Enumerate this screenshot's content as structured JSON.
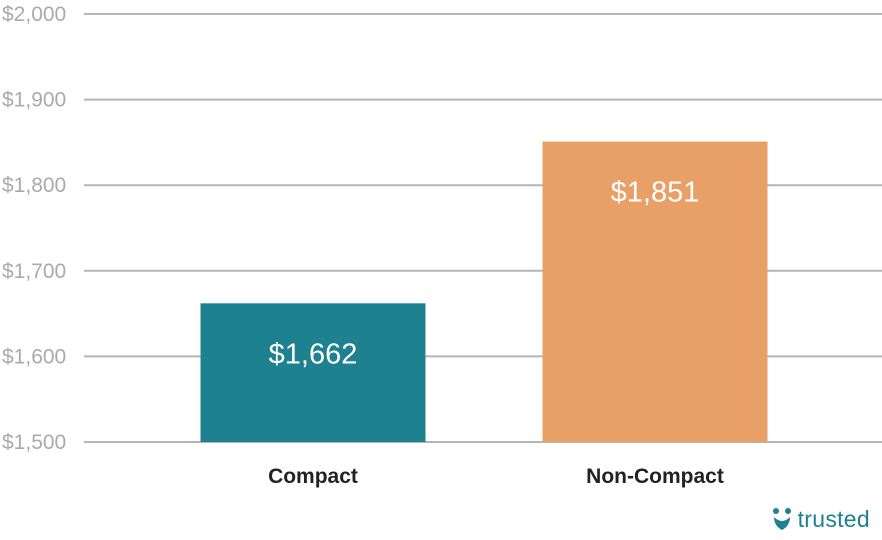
{
  "chart_data": {
    "type": "bar",
    "categories": [
      "Compact",
      "Non-Compact"
    ],
    "values": [
      1662,
      1851
    ],
    "data_labels": [
      "$1,662",
      "$1,851"
    ],
    "ylim": [
      1500,
      2000
    ],
    "yticks": [
      1500,
      1600,
      1700,
      1800,
      1900,
      2000
    ],
    "ytick_labels": [
      "$1,500",
      "$1,600",
      "$1,700",
      "$1,800",
      "$1,900",
      "$2,000"
    ],
    "bar_colors": [
      "#1e8190",
      "#e8a068"
    ],
    "grid": true,
    "legend": "none"
  },
  "brand": {
    "name": "trusted",
    "color": "#1e8190",
    "icon": "trusted-logo-icon"
  }
}
